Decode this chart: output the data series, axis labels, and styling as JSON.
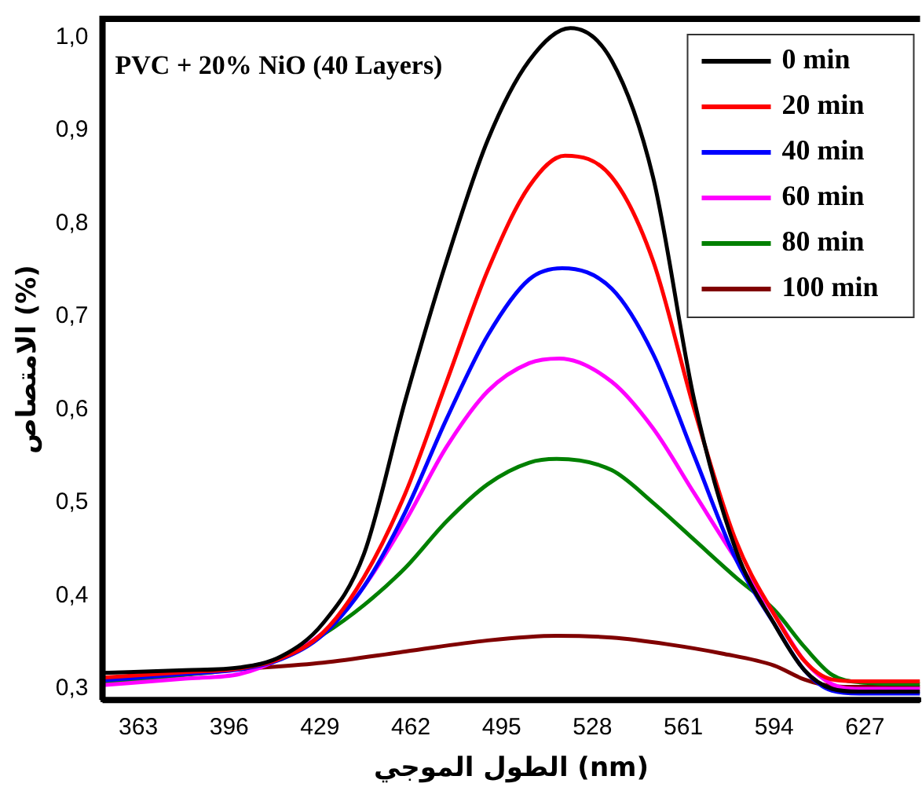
{
  "chart_data": {
    "type": "line",
    "xlabel": "الطول الموجي (nm)",
    "ylabel": "الامتصاص (%)",
    "annotations": [
      "PVC + 20% NiO (40 Layers)"
    ],
    "xlim": [
      350,
      647
    ],
    "xticks": [
      363,
      396,
      429,
      462,
      495,
      528,
      561,
      594,
      627
    ],
    "ylim": [
      0.288,
      1.02
    ],
    "yticks": [
      {
        "value": 0.3,
        "label": "0,3"
      },
      {
        "value": 0.4,
        "label": "0,4"
      },
      {
        "value": 0.5,
        "label": "0,5"
      },
      {
        "value": 0.6,
        "label": "0,6"
      },
      {
        "value": 0.7,
        "label": "0,7"
      },
      {
        "value": 0.8,
        "label": "0,8"
      },
      {
        "value": 0.9,
        "label": "0,9"
      },
      {
        "value": 1.0,
        "label": "1,0"
      }
    ],
    "grid": false,
    "legend": "top right",
    "marker": "none",
    "line_style": "solid",
    "series": [
      {
        "name": "0 min",
        "color": "#000000",
        "x": [
          350,
          380,
          400,
          415,
          430,
          445,
          460,
          475,
          490,
          505,
          520,
          535,
          550,
          565,
          580,
          594,
          605,
          615,
          625,
          647
        ],
        "values": [
          0.317,
          0.32,
          0.323,
          0.335,
          0.37,
          0.445,
          0.61,
          0.76,
          0.89,
          0.975,
          1.01,
          0.975,
          0.85,
          0.61,
          0.45,
          0.37,
          0.32,
          0.3,
          0.297,
          0.297
        ]
      },
      {
        "name": "20 min",
        "color": "#ff0000",
        "x": [
          350,
          380,
          400,
          415,
          430,
          445,
          460,
          475,
          490,
          505,
          518,
          535,
          550,
          565,
          580,
          594,
          605,
          615,
          625,
          647
        ],
        "values": [
          0.312,
          0.318,
          0.322,
          0.333,
          0.36,
          0.42,
          0.51,
          0.63,
          0.75,
          0.84,
          0.873,
          0.85,
          0.76,
          0.6,
          0.46,
          0.38,
          0.33,
          0.31,
          0.308,
          0.308
        ]
      },
      {
        "name": "40 min",
        "color": "#0000ff",
        "x": [
          350,
          380,
          400,
          415,
          430,
          445,
          460,
          475,
          490,
          505,
          517,
          535,
          550,
          565,
          580,
          594,
          605,
          615,
          625,
          647
        ],
        "values": [
          0.309,
          0.316,
          0.321,
          0.332,
          0.358,
          0.41,
          0.49,
          0.59,
          0.68,
          0.74,
          0.752,
          0.73,
          0.66,
          0.55,
          0.44,
          0.37,
          0.32,
          0.298,
          0.295,
          0.295
        ]
      },
      {
        "name": "60 min",
        "color": "#ff00ff",
        "x": [
          350,
          380,
          400,
          415,
          430,
          445,
          460,
          475,
          490,
          505,
          516,
          535,
          550,
          565,
          580,
          594,
          605,
          615,
          625,
          647
        ],
        "values": [
          0.304,
          0.311,
          0.316,
          0.333,
          0.36,
          0.41,
          0.48,
          0.56,
          0.62,
          0.65,
          0.655,
          0.63,
          0.58,
          0.51,
          0.44,
          0.38,
          0.33,
          0.305,
          0.3,
          0.3
        ]
      },
      {
        "name": "80 min",
        "color": "#008000",
        "x": [
          350,
          380,
          400,
          415,
          430,
          445,
          460,
          475,
          490,
          505,
          515,
          535,
          550,
          565,
          580,
          594,
          605,
          615,
          625,
          647
        ],
        "values": [
          0.307,
          0.315,
          0.322,
          0.333,
          0.358,
          0.39,
          0.43,
          0.48,
          0.52,
          0.543,
          0.547,
          0.535,
          0.5,
          0.46,
          0.42,
          0.385,
          0.345,
          0.315,
          0.307,
          0.305
        ]
      },
      {
        "name": "100 min",
        "color": "#800000",
        "x": [
          350,
          380,
          400,
          430,
          460,
          490,
          515,
          535,
          555,
          575,
          594,
          605,
          615,
          625,
          647
        ],
        "values": [
          0.31,
          0.316,
          0.321,
          0.328,
          0.34,
          0.352,
          0.357,
          0.355,
          0.348,
          0.338,
          0.325,
          0.31,
          0.303,
          0.302,
          0.302
        ]
      }
    ]
  }
}
